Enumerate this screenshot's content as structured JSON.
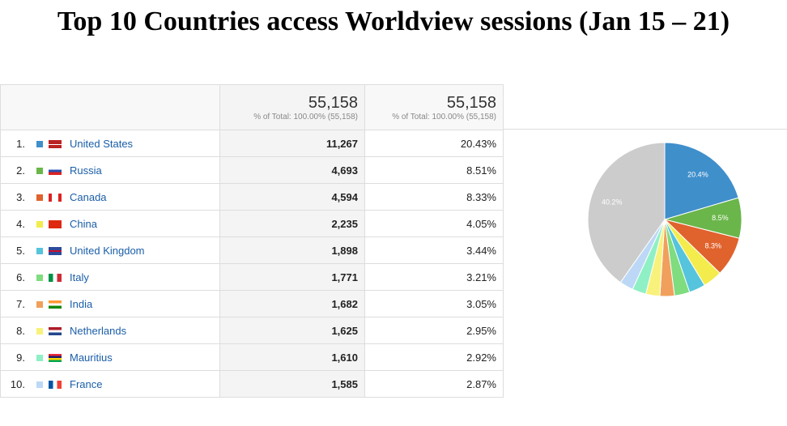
{
  "header": {
    "title": "Top 10 Countries access Worldview sessions (Jan 15 – 21)"
  },
  "table": {
    "totals": [
      {
        "value": "55,158",
        "note": "% of Total: 100.00% (55,158)"
      },
      {
        "value": "55,158",
        "note": "% of Total: 100.00% (55,158)"
      }
    ],
    "rows": [
      [
        "1.",
        "United States",
        "11,267",
        "20.43%"
      ],
      [
        "2.",
        "Russia",
        "4,693",
        "8.51%"
      ],
      [
        "3.",
        "Canada",
        "4,594",
        "8.33%"
      ],
      [
        "4.",
        "China",
        "2,235",
        "4.05%"
      ],
      [
        "5.",
        "United Kingdom",
        "1,898",
        "3.44%"
      ],
      [
        "6.",
        "Italy",
        "1,771",
        "3.21%"
      ],
      [
        "7.",
        "India",
        "1,682",
        "3.05%"
      ],
      [
        "8.",
        "Netherlands",
        "1,625",
        "2.95%"
      ],
      [
        "9.",
        "Mauritius",
        "1,610",
        "2.92%"
      ],
      [
        "10.",
        "France",
        "1,585",
        "2.87%"
      ]
    ]
  },
  "chart_data": {
    "type": "pie",
    "values": [
      20.43,
      8.51,
      8.33,
      4.05,
      3.44,
      3.21,
      3.05,
      2.95,
      2.92,
      2.87,
      40.24
    ],
    "value_labels": [
      "20.4%",
      "8.5%",
      "8.3%",
      null,
      null,
      null,
      null,
      null,
      null,
      null,
      "40.2%"
    ],
    "colors": [
      "#3f8fcb",
      "#6ab64a",
      "#e0622d",
      "#f3ec4c",
      "#55c4dc",
      "#7fdc7f",
      "#f0a05c",
      "#f8f27c",
      "#8ff0c6",
      "#bcd8f6",
      "#cccccc"
    ]
  }
}
